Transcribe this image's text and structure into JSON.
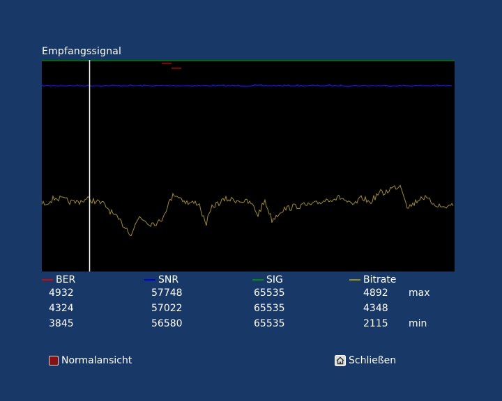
{
  "window": {
    "title": "Empfangssignal"
  },
  "legend": [
    {
      "label": "BER",
      "color": "#e00000"
    },
    {
      "label": "SNR",
      "color": "#0000e0"
    },
    {
      "label": "SIG",
      "color": "#009000"
    },
    {
      "label": "Bitrate",
      "color": "#a09010"
    }
  ],
  "stats": {
    "max": {
      "label": "max",
      "ber": "4932",
      "snr": "57748",
      "sig": "65535",
      "bitrate": "4892"
    },
    "current": {
      "label": "",
      "ber": "4324",
      "snr": "57022",
      "sig": "65535",
      "bitrate": "4348"
    },
    "min": {
      "label": "min",
      "ber": "3845",
      "snr": "56580",
      "sig": "65535",
      "bitrate": "2115"
    }
  },
  "footer": {
    "red_button_label": "Normalansicht",
    "home_button_label": "Schließen",
    "red_key_icon": "red-key-icon",
    "home_icon": "home-icon"
  }
}
